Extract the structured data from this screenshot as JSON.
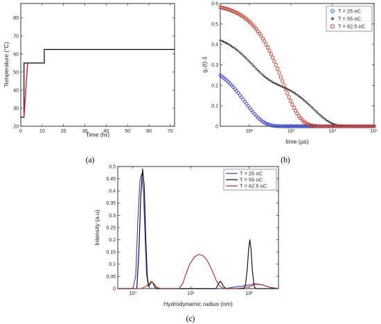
{
  "chart_data": [
    {
      "panel_label": "(a)",
      "type": "line",
      "xlabel": "Time (hr)",
      "ylabel": "Temperature (°C)",
      "xlim": [
        0,
        72
      ],
      "ylim": [
        20,
        88
      ],
      "xticks": [
        0,
        10,
        20,
        30,
        40,
        50,
        60,
        70
      ],
      "yticks": [
        20,
        30,
        40,
        50,
        60,
        70,
        80
      ],
      "grid": false,
      "series": [
        {
          "color": "#000000",
          "x": [
            0,
            1.5,
            1.5,
            3.2,
            3.2,
            11,
            11,
            72
          ],
          "y": [
            25,
            25,
            55,
            55,
            55,
            55,
            62.5,
            62.5
          ]
        },
        {
          "color": "#e8192c",
          "x": [
            1.5,
            3.2
          ],
          "y": [
            25,
            55
          ]
        }
      ]
    },
    {
      "panel_label": "(b)",
      "type": "scatter",
      "xlabel": "time  (μs)",
      "ylabel": "g₂(t)-1",
      "xscale": "log",
      "xlim": [
        20,
        100000
      ],
      "ylim": [
        0,
        0.6
      ],
      "xticks": [
        100,
        1000,
        10000,
        100000
      ],
      "xtick_labels": [
        "10²",
        "10³",
        "10⁴",
        "10⁵"
      ],
      "yticks": [
        0,
        0.1,
        0.2,
        0.3,
        0.4,
        0.5,
        0.6
      ],
      "legend_position": "top-right",
      "series": [
        {
          "name": "T = 25 oC",
          "marker": "circle",
          "color": "#1f2fd6",
          "amp": 0.32,
          "tau": 160,
          "amp2": 0,
          "tau2": 1
        },
        {
          "name": "T = 55 oC",
          "marker": "plus",
          "color": "#111111",
          "amp": 0.23,
          "tau": 220,
          "amp2": 0.23,
          "tau2": 7000
        },
        {
          "name": "T = 62.5 oC",
          "marker": "square",
          "color": "#c0392b",
          "amp": 0.6,
          "tau": 1250,
          "amp2": 0,
          "tau2": 1
        }
      ]
    },
    {
      "panel_label": "(c)",
      "type": "line",
      "xlabel": "Hydrodynamic radius (nm)",
      "ylabel": "Intensity (a.u)",
      "xscale": "log",
      "xlim": [
        0.55,
        320
      ],
      "ylim": [
        0,
        0.5
      ],
      "xticks": [
        1,
        10,
        100
      ],
      "xtick_labels": [
        "10⁰",
        "10¹",
        "10²"
      ],
      "yticks": [
        0,
        0.05,
        0.1,
        0.15,
        0.2,
        0.25,
        0.3,
        0.35,
        0.4,
        0.45,
        0.5
      ],
      "legend_position": "top-right",
      "series": [
        {
          "name": "T = 25 oC",
          "color": "#3b4cc0",
          "x": [
            0.55,
            1.0,
            1.12,
            1.22,
            1.32,
            1.42,
            1.52,
            1.62,
            1.72,
            1.85,
            2.0,
            40,
            50,
            75,
            100,
            130,
            170,
            230,
            320
          ],
          "y": [
            0,
            0,
            0.05,
            0.28,
            0.44,
            0.47,
            0.4,
            0.22,
            0.06,
            0.01,
            0,
            0,
            0.005,
            0.01,
            0.015,
            0.02,
            0.015,
            0.005,
            0
          ]
        },
        {
          "name": "T = 55 oC",
          "color": "#111111",
          "x": [
            0.55,
            1.17,
            1.27,
            1.37,
            1.47,
            1.57,
            1.67,
            1.77,
            1.87,
            2.0,
            2.1,
            2.25,
            2.4,
            2.6,
            27,
            29,
            31.5,
            33.5,
            36,
            40,
            82,
            87,
            93,
            98,
            103,
            108,
            114,
            122,
            130,
            320
          ],
          "y": [
            0,
            0,
            0.15,
            0.38,
            0.49,
            0.42,
            0.2,
            0.05,
            0.01,
            0.02,
            0.03,
            0.02,
            0.005,
            0,
            0,
            0.015,
            0.03,
            0.025,
            0.01,
            0,
            0,
            0.02,
            0.08,
            0.16,
            0.2,
            0.16,
            0.07,
            0.01,
            0,
            0
          ]
        },
        {
          "name": "T = 62.5 oC",
          "color": "#b03a2e",
          "x": [
            0.55,
            1.4,
            1.55,
            1.7,
            1.9,
            2.1,
            2.3,
            2.6,
            3.0,
            6.2,
            7.2,
            8.2,
            9.5,
            11.5,
            13.5,
            16,
            18.5,
            21,
            24,
            27,
            30,
            34,
            38,
            60,
            80,
            100,
            130,
            170,
            230,
            320
          ],
          "y": [
            0,
            0,
            0.005,
            0.01,
            0.02,
            0.03,
            0.02,
            0.005,
            0,
            0,
            0.02,
            0.06,
            0.1,
            0.13,
            0.14,
            0.135,
            0.12,
            0.095,
            0.065,
            0.035,
            0.015,
            0.004,
            0,
            0,
            0.003,
            0.008,
            0.018,
            0.015,
            0.005,
            0
          ]
        }
      ]
    }
  ]
}
